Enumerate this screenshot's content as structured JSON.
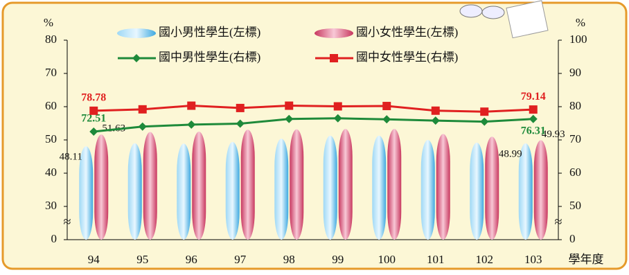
{
  "chart_data": {
    "type": "combo",
    "categories": [
      "94",
      "95",
      "96",
      "97",
      "98",
      "99",
      "100",
      "101",
      "102",
      "103"
    ],
    "x_label": "學年度",
    "y_label": "%",
    "y2_label": "%",
    "ylim": [
      0,
      80
    ],
    "yticks": [
      0,
      30,
      40,
      50,
      60,
      70,
      80
    ],
    "y_break": [
      0,
      30
    ],
    "y2lim": [
      0,
      100
    ],
    "y2ticks": [
      0,
      50,
      60,
      70,
      80,
      90,
      100
    ],
    "y2_break": [
      0,
      50
    ],
    "series": [
      {
        "name": "國小男性學生(左標)",
        "type": "bar",
        "color": "#3fa9e0",
        "values": [
          48.11,
          49.0,
          48.9,
          49.4,
          50.4,
          51.3,
          51.3,
          50.0,
          49.2,
          48.99
        ],
        "value_labels": [
          "48.11",
          null,
          null,
          null,
          null,
          null,
          null,
          null,
          null,
          "48.99"
        ]
      },
      {
        "name": "國小女性學生(左標)",
        "type": "bar",
        "color": "#e0507a",
        "values": [
          51.63,
          52.4,
          52.5,
          53.1,
          53.2,
          53.3,
          53.3,
          51.8,
          51.0,
          49.93
        ],
        "value_labels": [
          "51.63",
          null,
          null,
          null,
          null,
          null,
          null,
          null,
          null,
          "49.93"
        ]
      },
      {
        "name": "國中男性學生(右標)",
        "type": "line",
        "axis": "y2",
        "color": "#1e8a3a",
        "marker": "diamond",
        "values": [
          72.51,
          74.0,
          74.6,
          74.9,
          76.3,
          76.5,
          76.2,
          75.8,
          75.5,
          76.31
        ],
        "value_labels": [
          "72.51",
          null,
          null,
          null,
          null,
          null,
          null,
          null,
          null,
          "76.31"
        ]
      },
      {
        "name": "國中女性學生(右標)",
        "type": "line",
        "axis": "y2",
        "color": "#e02020",
        "marker": "square",
        "values": [
          78.78,
          79.2,
          80.3,
          79.6,
          80.3,
          80.1,
          80.2,
          78.8,
          78.5,
          79.14
        ],
        "value_labels": [
          "78.78",
          null,
          null,
          null,
          null,
          null,
          null,
          null,
          null,
          "79.14"
        ]
      }
    ]
  }
}
